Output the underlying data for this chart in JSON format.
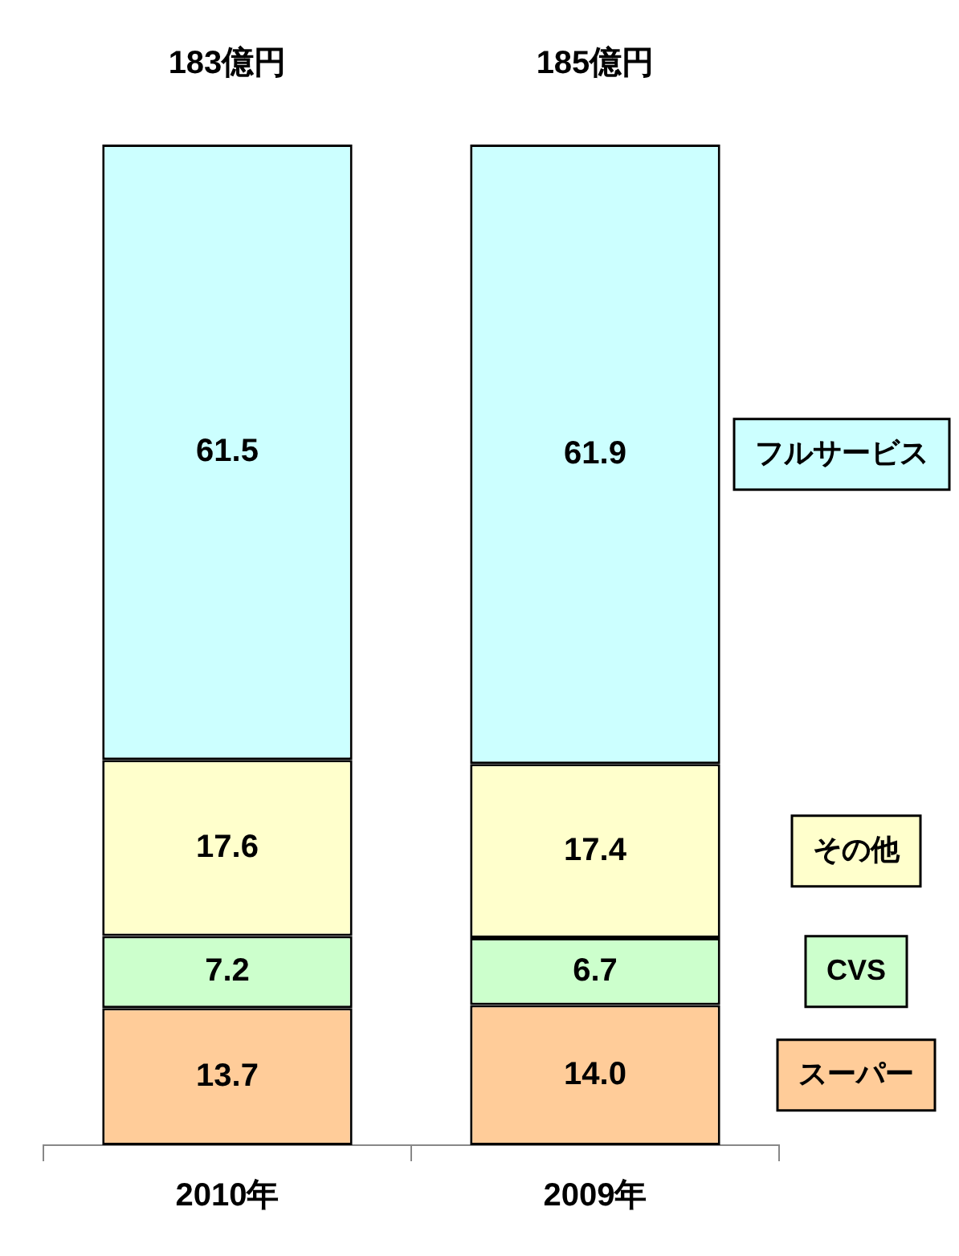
{
  "chart_data": {
    "type": "bar",
    "stacked": true,
    "categories": [
      "2010年",
      "2009年"
    ],
    "series": [
      {
        "name": "スーパー",
        "color": "#ffcc99",
        "values": [
          13.7,
          14.0
        ],
        "value_labels": [
          "13.7",
          "14.0"
        ]
      },
      {
        "name": "CVS",
        "color": "#ccffcc",
        "values": [
          7.2,
          6.7
        ],
        "value_labels": [
          "7.2",
          "6.7"
        ]
      },
      {
        "name": "その他",
        "color": "#ffffcc",
        "values": [
          17.6,
          17.4
        ],
        "value_labels": [
          "17.6",
          "17.4"
        ]
      },
      {
        "name": "フルサービス",
        "color": "#ccffff",
        "values": [
          61.5,
          61.9
        ],
        "value_labels": [
          "61.5",
          "61.9"
        ]
      }
    ],
    "annotations": [
      "183億円",
      "185億円"
    ],
    "legend": "right"
  }
}
